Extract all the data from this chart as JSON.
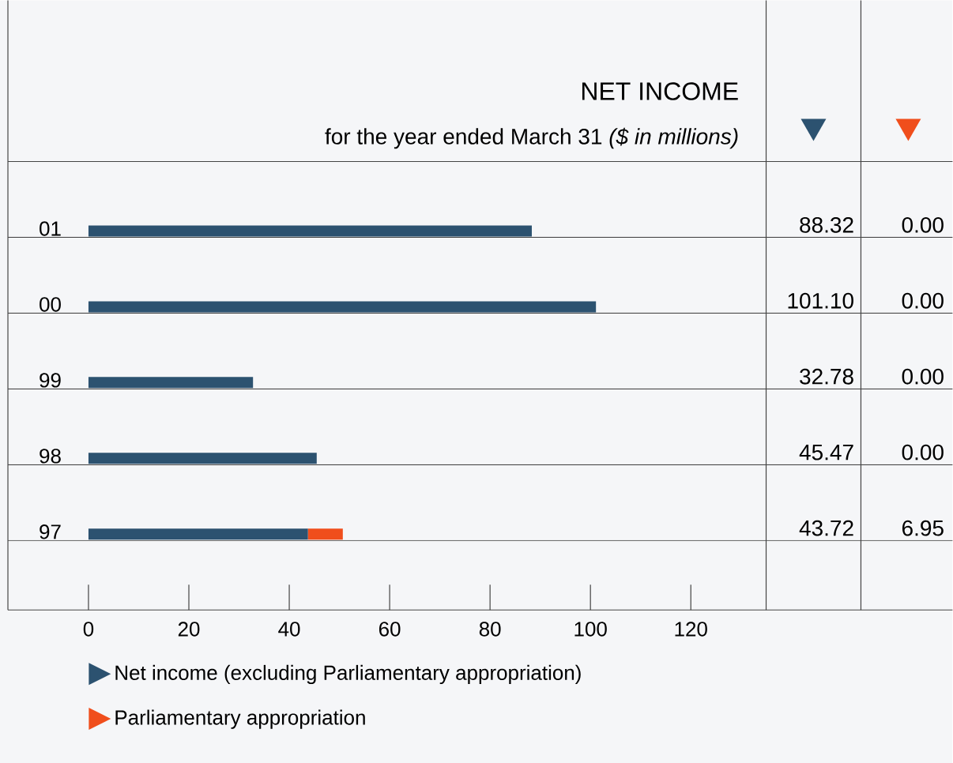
{
  "chart_data": {
    "type": "bar",
    "orientation": "horizontal",
    "stacked": true,
    "title": "NET INCOME",
    "subtitle": "for the year ended March 31 *($ in millions)*",
    "categories": [
      "01",
      "00",
      "99",
      "98",
      "97"
    ],
    "series": [
      {
        "name": "Net income (excluding Parliamentary appropriation)",
        "color": "#2c5270",
        "values": [
          88.32,
          101.1,
          32.78,
          45.47,
          43.72
        ],
        "value_labels": [
          "88.32",
          "101.10",
          "32.78",
          "45.47",
          "43.72"
        ]
      },
      {
        "name": "Parliamentary appropriation",
        "color": "#f04e1c",
        "values": [
          0.0,
          0.0,
          0.0,
          0.0,
          6.95
        ],
        "value_labels": [
          "0.00",
          "0.00",
          "0.00",
          "0.00",
          "6.95"
        ]
      }
    ],
    "xlim": [
      0,
      135
    ],
    "xticks": [
      0,
      20,
      40,
      60,
      80,
      100,
      120
    ],
    "grid": false,
    "legend": "bottom"
  }
}
